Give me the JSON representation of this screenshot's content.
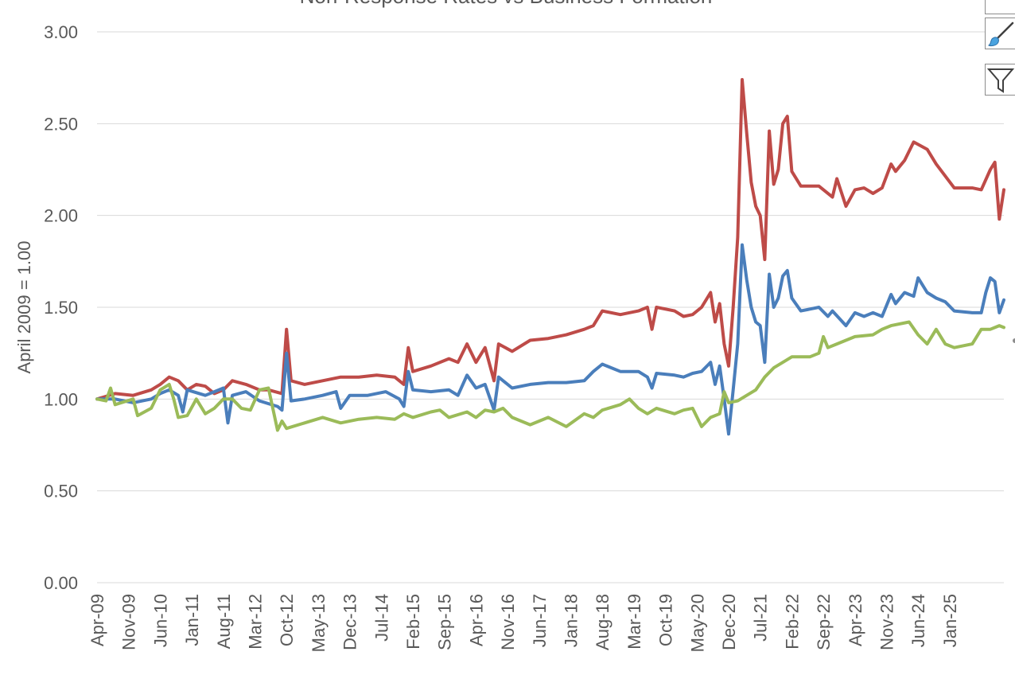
{
  "chart_data": {
    "type": "line",
    "title": "Non-Response Rates vs Business Formation",
    "xlabel": "",
    "ylabel": "April 2009 = 1.00",
    "ylim": [
      0,
      3
    ],
    "yticks": [
      "0.00",
      "0.50",
      "1.00",
      "1.50",
      "2.00",
      "2.50",
      "3.00"
    ],
    "x_tick_labels": [
      "Apr-09",
      "Nov-09",
      "Jun-10",
      "Jan-11",
      "Aug-11",
      "Mar-12",
      "Oct-12",
      "May-13",
      "Dec-13",
      "Jul-14",
      "Feb-15",
      "Sep-15",
      "Apr-16",
      "Nov-16",
      "Jun-17",
      "Jan-18",
      "Aug-18",
      "Mar-19",
      "Oct-19",
      "May-20",
      "Dec-20",
      "Jul-21",
      "Feb-22",
      "Sep-22",
      "Apr-23",
      "Nov-23",
      "Jun-24",
      "Jan-25"
    ],
    "grid": true,
    "legend": "none",
    "series": [
      {
        "color": "#be4b48",
        "keypoints": [
          [
            0,
            1.0
          ],
          [
            4,
            1.03
          ],
          [
            8,
            1.02
          ],
          [
            12,
            1.05
          ],
          [
            14,
            1.08
          ],
          [
            16,
            1.12
          ],
          [
            18,
            1.1
          ],
          [
            20,
            1.05
          ],
          [
            22,
            1.08
          ],
          [
            24,
            1.07
          ],
          [
            26,
            1.03
          ],
          [
            28,
            1.05
          ],
          [
            30,
            1.1
          ],
          [
            33,
            1.08
          ],
          [
            36,
            1.05
          ],
          [
            38,
            1.05
          ],
          [
            41,
            1.03
          ],
          [
            42,
            1.38
          ],
          [
            43,
            1.1
          ],
          [
            46,
            1.08
          ],
          [
            50,
            1.1
          ],
          [
            54,
            1.12
          ],
          [
            58,
            1.12
          ],
          [
            62,
            1.13
          ],
          [
            66,
            1.12
          ],
          [
            68,
            1.08
          ],
          [
            69,
            1.28
          ],
          [
            70,
            1.15
          ],
          [
            74,
            1.18
          ],
          [
            78,
            1.22
          ],
          [
            80,
            1.2
          ],
          [
            82,
            1.3
          ],
          [
            84,
            1.2
          ],
          [
            86,
            1.28
          ],
          [
            88,
            1.1
          ],
          [
            89,
            1.3
          ],
          [
            92,
            1.26
          ],
          [
            96,
            1.32
          ],
          [
            100,
            1.33
          ],
          [
            104,
            1.35
          ],
          [
            108,
            1.38
          ],
          [
            110,
            1.4
          ],
          [
            112,
            1.48
          ],
          [
            116,
            1.46
          ],
          [
            120,
            1.48
          ],
          [
            122,
            1.5
          ],
          [
            123,
            1.38
          ],
          [
            124,
            1.5
          ],
          [
            128,
            1.48
          ],
          [
            130,
            1.45
          ],
          [
            132,
            1.46
          ],
          [
            134,
            1.5
          ],
          [
            136,
            1.58
          ],
          [
            137,
            1.42
          ],
          [
            138,
            1.52
          ],
          [
            139,
            1.3
          ],
          [
            140,
            1.18
          ],
          [
            141,
            1.5
          ],
          [
            142,
            1.88
          ],
          [
            143,
            2.74
          ],
          [
            144,
            2.45
          ],
          [
            145,
            2.18
          ],
          [
            146,
            2.05
          ],
          [
            147,
            2.0
          ],
          [
            148,
            1.76
          ],
          [
            149,
            2.46
          ],
          [
            150,
            2.17
          ],
          [
            151,
            2.25
          ],
          [
            152,
            2.5
          ],
          [
            153,
            2.54
          ],
          [
            154,
            2.24
          ],
          [
            156,
            2.16
          ],
          [
            160,
            2.16
          ],
          [
            163,
            2.1
          ],
          [
            164,
            2.2
          ],
          [
            166,
            2.05
          ],
          [
            168,
            2.14
          ],
          [
            170,
            2.15
          ],
          [
            172,
            2.12
          ],
          [
            174,
            2.15
          ],
          [
            176,
            2.28
          ],
          [
            177,
            2.24
          ],
          [
            179,
            2.3
          ],
          [
            181,
            2.4
          ],
          [
            184,
            2.36
          ],
          [
            186,
            2.28
          ],
          [
            190,
            2.15
          ],
          [
            194,
            2.15
          ],
          [
            196,
            2.14
          ],
          [
            198,
            2.25
          ],
          [
            199,
            2.29
          ],
          [
            200,
            1.98
          ],
          [
            201,
            2.14
          ]
        ]
      },
      {
        "color": "#4a7ebb",
        "keypoints": [
          [
            0,
            1.0
          ],
          [
            4,
            1.0
          ],
          [
            8,
            0.98
          ],
          [
            12,
            1.0
          ],
          [
            14,
            1.03
          ],
          [
            16,
            1.05
          ],
          [
            18,
            1.02
          ],
          [
            19,
            0.93
          ],
          [
            20,
            1.05
          ],
          [
            24,
            1.02
          ],
          [
            26,
            1.04
          ],
          [
            28,
            1.06
          ],
          [
            29,
            0.87
          ],
          [
            30,
            1.02
          ],
          [
            33,
            1.04
          ],
          [
            36,
            0.99
          ],
          [
            40,
            0.96
          ],
          [
            41,
            0.94
          ],
          [
            42,
            1.25
          ],
          [
            43,
            0.99
          ],
          [
            46,
            1.0
          ],
          [
            50,
            1.02
          ],
          [
            53,
            1.04
          ],
          [
            54,
            0.95
          ],
          [
            56,
            1.02
          ],
          [
            60,
            1.02
          ],
          [
            64,
            1.04
          ],
          [
            67,
            1.0
          ],
          [
            68,
            0.96
          ],
          [
            69,
            1.15
          ],
          [
            70,
            1.05
          ],
          [
            74,
            1.04
          ],
          [
            78,
            1.05
          ],
          [
            80,
            1.02
          ],
          [
            82,
            1.13
          ],
          [
            84,
            1.06
          ],
          [
            86,
            1.08
          ],
          [
            88,
            0.94
          ],
          [
            89,
            1.12
          ],
          [
            92,
            1.06
          ],
          [
            96,
            1.08
          ],
          [
            100,
            1.09
          ],
          [
            104,
            1.09
          ],
          [
            108,
            1.1
          ],
          [
            110,
            1.15
          ],
          [
            112,
            1.19
          ],
          [
            116,
            1.15
          ],
          [
            120,
            1.15
          ],
          [
            122,
            1.12
          ],
          [
            123,
            1.06
          ],
          [
            124,
            1.14
          ],
          [
            128,
            1.13
          ],
          [
            130,
            1.12
          ],
          [
            132,
            1.14
          ],
          [
            134,
            1.15
          ],
          [
            136,
            1.2
          ],
          [
            137,
            1.08
          ],
          [
            138,
            1.18
          ],
          [
            139,
            1.0
          ],
          [
            140,
            0.81
          ],
          [
            141,
            1.05
          ],
          [
            142,
            1.3
          ],
          [
            143,
            1.84
          ],
          [
            144,
            1.65
          ],
          [
            145,
            1.5
          ],
          [
            146,
            1.42
          ],
          [
            147,
            1.4
          ],
          [
            148,
            1.2
          ],
          [
            149,
            1.68
          ],
          [
            150,
            1.5
          ],
          [
            151,
            1.55
          ],
          [
            152,
            1.67
          ],
          [
            153,
            1.7
          ],
          [
            154,
            1.55
          ],
          [
            156,
            1.48
          ],
          [
            160,
            1.5
          ],
          [
            162,
            1.45
          ],
          [
            163,
            1.48
          ],
          [
            166,
            1.4
          ],
          [
            168,
            1.47
          ],
          [
            170,
            1.45
          ],
          [
            172,
            1.47
          ],
          [
            174,
            1.45
          ],
          [
            176,
            1.57
          ],
          [
            177,
            1.52
          ],
          [
            179,
            1.58
          ],
          [
            181,
            1.56
          ],
          [
            182,
            1.66
          ],
          [
            184,
            1.58
          ],
          [
            186,
            1.55
          ],
          [
            188,
            1.53
          ],
          [
            190,
            1.48
          ],
          [
            194,
            1.47
          ],
          [
            196,
            1.47
          ],
          [
            197,
            1.58
          ],
          [
            198,
            1.66
          ],
          [
            199,
            1.64
          ],
          [
            200,
            1.47
          ],
          [
            201,
            1.54
          ]
        ]
      },
      {
        "color": "#9bbb59",
        "keypoints": [
          [
            0,
            1.0
          ],
          [
            2,
            0.99
          ],
          [
            3,
            1.06
          ],
          [
            4,
            0.97
          ],
          [
            8,
            1.0
          ],
          [
            9,
            0.91
          ],
          [
            12,
            0.95
          ],
          [
            14,
            1.05
          ],
          [
            16,
            1.08
          ],
          [
            17,
            1.0
          ],
          [
            18,
            0.9
          ],
          [
            20,
            0.91
          ],
          [
            22,
            1.0
          ],
          [
            24,
            0.92
          ],
          [
            26,
            0.95
          ],
          [
            28,
            1.0
          ],
          [
            30,
            1.0
          ],
          [
            32,
            0.95
          ],
          [
            34,
            0.94
          ],
          [
            36,
            1.05
          ],
          [
            38,
            1.06
          ],
          [
            40,
            0.83
          ],
          [
            41,
            0.88
          ],
          [
            42,
            0.84
          ],
          [
            46,
            0.87
          ],
          [
            50,
            0.9
          ],
          [
            54,
            0.87
          ],
          [
            58,
            0.89
          ],
          [
            62,
            0.9
          ],
          [
            66,
            0.89
          ],
          [
            68,
            0.92
          ],
          [
            70,
            0.9
          ],
          [
            74,
            0.93
          ],
          [
            76,
            0.94
          ],
          [
            78,
            0.9
          ],
          [
            82,
            0.93
          ],
          [
            84,
            0.9
          ],
          [
            86,
            0.94
          ],
          [
            88,
            0.93
          ],
          [
            90,
            0.95
          ],
          [
            92,
            0.9
          ],
          [
            96,
            0.86
          ],
          [
            100,
            0.9
          ],
          [
            104,
            0.85
          ],
          [
            108,
            0.92
          ],
          [
            110,
            0.9
          ],
          [
            112,
            0.94
          ],
          [
            116,
            0.97
          ],
          [
            118,
            1.0
          ],
          [
            120,
            0.95
          ],
          [
            122,
            0.92
          ],
          [
            124,
            0.95
          ],
          [
            128,
            0.92
          ],
          [
            130,
            0.94
          ],
          [
            132,
            0.95
          ],
          [
            134,
            0.85
          ],
          [
            136,
            0.9
          ],
          [
            138,
            0.92
          ],
          [
            139,
            1.04
          ],
          [
            140,
            0.98
          ],
          [
            142,
            0.99
          ],
          [
            144,
            1.02
          ],
          [
            146,
            1.05
          ],
          [
            148,
            1.12
          ],
          [
            150,
            1.17
          ],
          [
            152,
            1.2
          ],
          [
            154,
            1.23
          ],
          [
            158,
            1.23
          ],
          [
            160,
            1.25
          ],
          [
            161,
            1.34
          ],
          [
            162,
            1.28
          ],
          [
            164,
            1.3
          ],
          [
            168,
            1.34
          ],
          [
            172,
            1.35
          ],
          [
            174,
            1.38
          ],
          [
            176,
            1.4
          ],
          [
            180,
            1.42
          ],
          [
            182,
            1.35
          ],
          [
            184,
            1.3
          ],
          [
            186,
            1.38
          ],
          [
            188,
            1.3
          ],
          [
            190,
            1.28
          ],
          [
            194,
            1.3
          ],
          [
            196,
            1.38
          ],
          [
            198,
            1.38
          ],
          [
            200,
            1.4
          ],
          [
            201,
            1.39
          ]
        ]
      }
    ]
  },
  "toolbar": {
    "icons": [
      "chart-elements-icon",
      "paintbrush-icon",
      "funnel-icon"
    ]
  }
}
